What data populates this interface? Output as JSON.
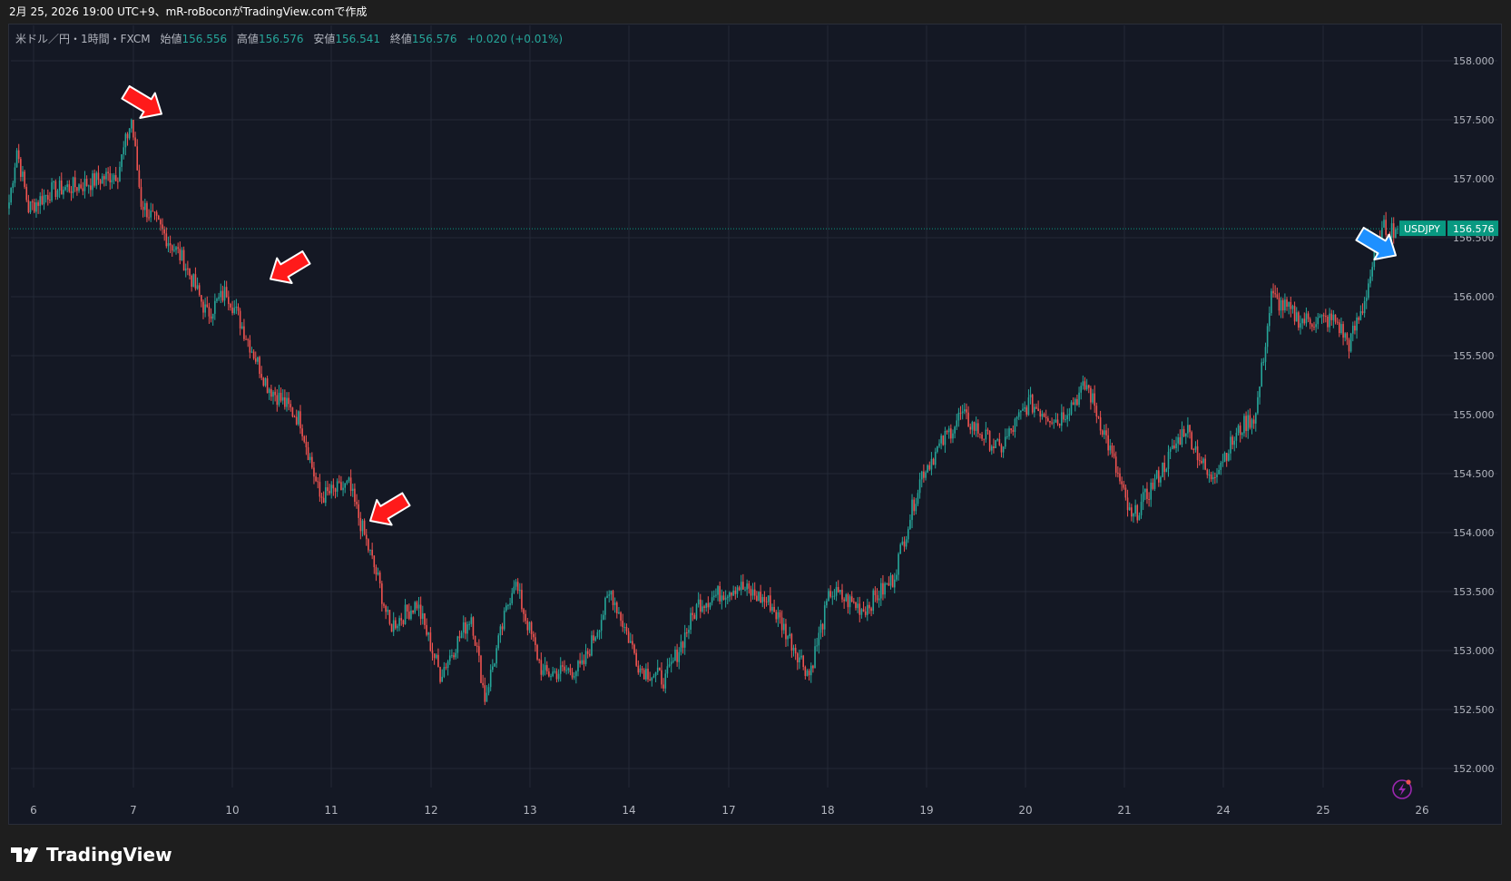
{
  "header": {
    "caption": "2月 25, 2026 19:00 UTC+9、mR-roBoconがTradingView.comで作成"
  },
  "legend": {
    "symbol_desc": "米ドル／円・1時間・FXCM",
    "open_label": "始値",
    "open": "156.556",
    "high_label": "高値",
    "high": "156.576",
    "low_label": "安値",
    "low": "156.541",
    "close_label": "終値",
    "close": "156.576",
    "change": "+0.020 (+0.01%)"
  },
  "price_tag": {
    "symbol": "USDJPY",
    "price": "156.576"
  },
  "footer": {
    "brand": "TradingView"
  },
  "colors": {
    "up": "#26a69a",
    "down": "#ef5350",
    "background": "#141824",
    "grid": "#242936",
    "text": "#b2b5be",
    "tag": "#089981",
    "arrow_red": "#ff1a1a",
    "arrow_blue": "#1e90ff"
  },
  "icons": [
    "lightning-icon",
    "tradingview-logo-icon",
    "arrow-icon"
  ],
  "annotations": [
    {
      "type": "arrow",
      "color": "red",
      "at_day": "7",
      "at_price": 157.55,
      "direction": "down-right"
    },
    {
      "type": "arrow",
      "color": "red",
      "at_day": "10",
      "at_price": 156.15,
      "direction": "down-left"
    },
    {
      "type": "arrow",
      "color": "red",
      "at_day": "11",
      "at_price": 154.1,
      "direction": "down-left"
    },
    {
      "type": "arrow",
      "color": "blue",
      "at_day": "25",
      "at_price": 156.35,
      "direction": "down-right"
    }
  ],
  "chart_data": {
    "type": "candlestick",
    "title": "",
    "symbol": "USDJPY",
    "timeframe": "1時間",
    "source": "FXCM",
    "x_ticks": [
      "6",
      "7",
      "10",
      "11",
      "12",
      "13",
      "14",
      "17",
      "18",
      "19",
      "20",
      "21",
      "24",
      "25",
      "26"
    ],
    "y_ticks": [
      "152.000",
      "152.500",
      "153.000",
      "153.500",
      "154.000",
      "154.500",
      "155.000",
      "155.500",
      "156.000",
      "156.500",
      "157.000",
      "157.500",
      "158.000"
    ],
    "ylim": [
      151.8,
      158.3
    ],
    "grid": true,
    "last_price": 156.576,
    "path": [
      [
        0,
        156.8
      ],
      [
        4,
        157.25
      ],
      [
        10,
        156.75
      ],
      [
        22,
        156.9
      ],
      [
        38,
        156.95
      ],
      [
        56,
        157.05
      ],
      [
        63,
        157.5
      ],
      [
        68,
        156.8
      ],
      [
        90,
        156.3
      ],
      [
        102,
        155.85
      ],
      [
        112,
        156.05
      ],
      [
        120,
        155.75
      ],
      [
        133,
        155.25
      ],
      [
        150,
        154.95
      ],
      [
        160,
        154.3
      ],
      [
        175,
        154.4
      ],
      [
        190,
        153.6
      ],
      [
        196,
        153.2
      ],
      [
        210,
        153.4
      ],
      [
        222,
        152.8
      ],
      [
        238,
        153.3
      ],
      [
        245,
        152.6
      ],
      [
        260,
        153.6
      ],
      [
        275,
        152.8
      ],
      [
        295,
        152.85
      ],
      [
        310,
        153.5
      ],
      [
        325,
        152.85
      ],
      [
        338,
        152.75
      ],
      [
        355,
        153.4
      ],
      [
        375,
        153.55
      ],
      [
        392,
        153.4
      ],
      [
        412,
        152.8
      ],
      [
        423,
        153.5
      ],
      [
        440,
        153.35
      ],
      [
        455,
        153.6
      ],
      [
        470,
        154.5
      ],
      [
        490,
        155.0
      ],
      [
        510,
        154.7
      ],
      [
        525,
        155.1
      ],
      [
        540,
        154.95
      ],
      [
        555,
        155.25
      ],
      [
        565,
        154.8
      ],
      [
        578,
        154.1
      ],
      [
        596,
        154.6
      ],
      [
        606,
        154.9
      ],
      [
        618,
        154.45
      ],
      [
        635,
        154.9
      ],
      [
        642,
        155.0
      ],
      [
        650,
        156.0
      ],
      [
        665,
        155.8
      ],
      [
        683,
        155.8
      ],
      [
        690,
        155.6
      ],
      [
        697,
        155.9
      ],
      [
        704,
        156.4
      ],
      [
        708,
        156.576
      ]
    ]
  }
}
